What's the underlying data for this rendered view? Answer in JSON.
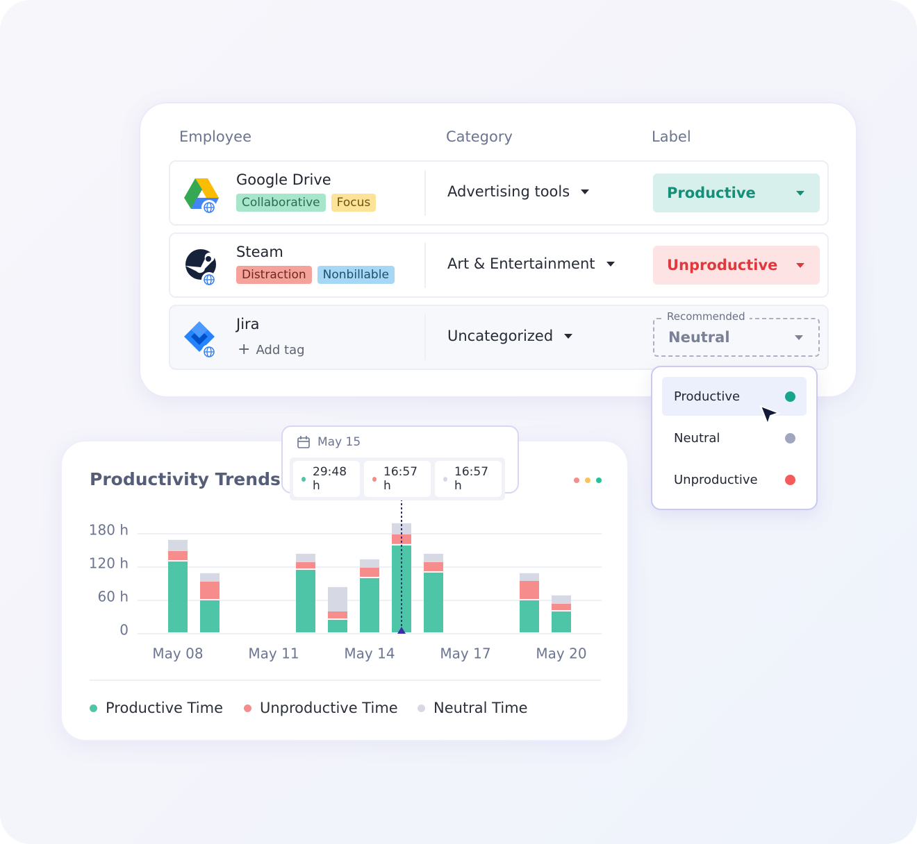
{
  "table": {
    "headers": [
      "Employee",
      "Category",
      "Label"
    ],
    "rows": [
      {
        "app": "Google Drive",
        "tags": [
          "Collaborative",
          "Focus"
        ],
        "category": "Advertising tools",
        "label": "Productive"
      },
      {
        "app": "Steam",
        "tags": [
          "Distraction",
          "Nonbillable"
        ],
        "category": "Art & Entertainment",
        "label": "Unproductive"
      },
      {
        "app": "Jira",
        "add_tag": "Add tag",
        "category": "Uncategorized",
        "recommended": "Recommended",
        "label": "Neutral"
      }
    ]
  },
  "dropdown": {
    "options": [
      "Productive",
      "Neutral",
      "Unproductive"
    ]
  },
  "chart_data": {
    "type": "stacked-bar",
    "title": "Productivity Trends",
    "categories": [
      "May 08",
      null,
      null,
      "May 11",
      null,
      null,
      "May 14",
      null,
      null,
      "May 17",
      null,
      null,
      "May 20"
    ],
    "series": [
      {
        "name": "Productive Time",
        "color": "#4fc5a7",
        "values": [
          130,
          60,
          0,
          0,
          115,
          25,
          100,
          159,
          110,
          0,
          0,
          60,
          40
        ]
      },
      {
        "name": "Unproductive Time",
        "color": "#f68c8b",
        "values": [
          19,
          34,
          0,
          0,
          14,
          15,
          19,
          20,
          19,
          0,
          0,
          35,
          14
        ]
      },
      {
        "name": "Neutral Time",
        "color": "#d6d9e4",
        "values": [
          20,
          15,
          0,
          0,
          15,
          44,
          15,
          20,
          15,
          0,
          0,
          14,
          15
        ]
      }
    ],
    "ylim": [
      0,
      200
    ],
    "yticks": [
      0,
      {
        "value": 60,
        "label": "60 h"
      },
      {
        "value": 120,
        "label": "120 h"
      },
      {
        "value": 180,
        "label": "180 h"
      }
    ],
    "grid": true,
    "tooltip": {
      "date": "May 15",
      "values": [
        "29:48 h",
        "16:57 h",
        "16:57 h"
      ]
    }
  }
}
